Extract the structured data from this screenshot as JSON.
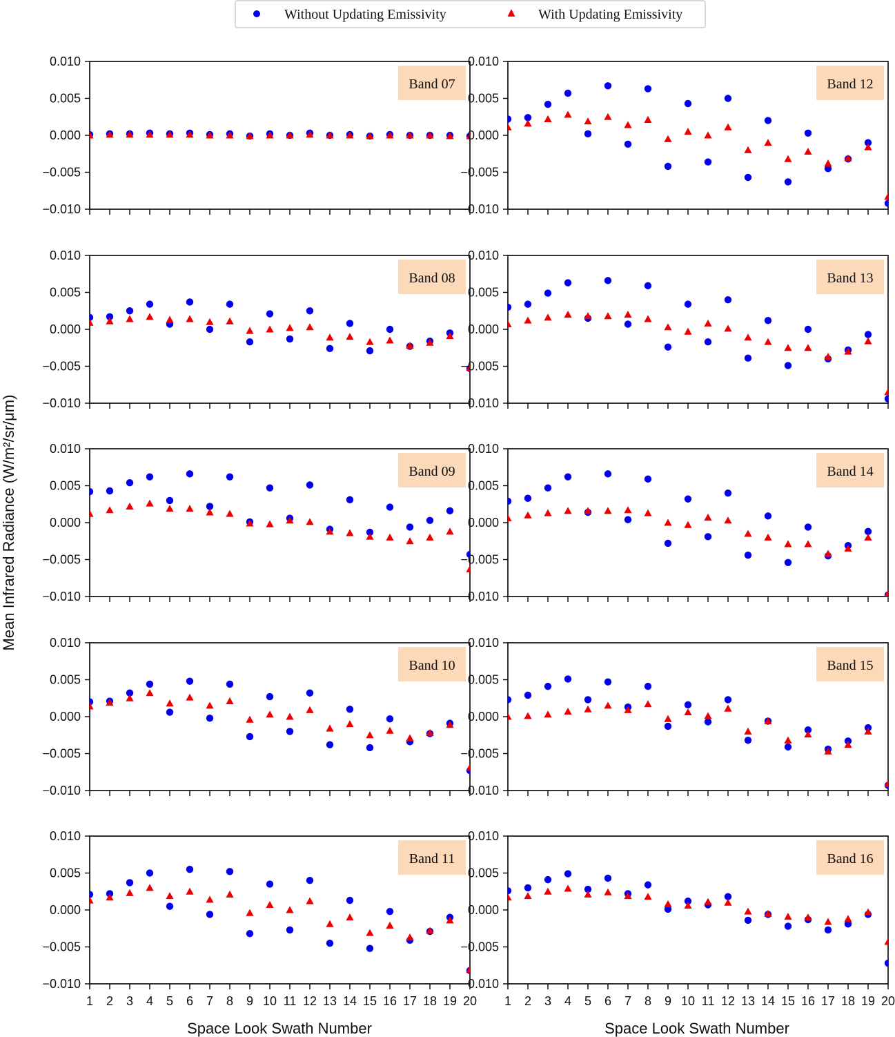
{
  "chart_data": {
    "type": "scatter",
    "ylabel": "Mean Infrared Radiance (W/m²/sr/μm)",
    "xlabel": "Space Look Swath Number",
    "xlim": [
      1,
      20
    ],
    "ylim": [
      -0.01,
      0.01
    ],
    "x_ticks": [
      "1",
      "2",
      "3",
      "4",
      "5",
      "6",
      "7",
      "8",
      "9",
      "10",
      "11",
      "12",
      "13",
      "14",
      "15",
      "16",
      "17",
      "18",
      "19",
      "20"
    ],
    "y_ticks": [
      {
        "value": 0.01,
        "label": "0.010"
      },
      {
        "value": 0.005,
        "label": "0.005"
      },
      {
        "value": 0.0,
        "label": "0.000"
      },
      {
        "value": -0.005,
        "label": "−0.005"
      },
      {
        "value": -0.01,
        "label": "−0.010"
      }
    ],
    "legend": {
      "position": "top-center",
      "entries": [
        {
          "label": "Without Updating Emissivity",
          "marker": "circle",
          "color": "#0000ee"
        },
        {
          "label": "With Updating Emissivity",
          "marker": "triangle",
          "color": "#ee0000"
        }
      ]
    },
    "panel_label_bg": "#fcd9b8",
    "panels": [
      {
        "band": "Band 07",
        "without": [
          0.0001,
          0.0002,
          0.0002,
          0.0003,
          0.0002,
          0.0003,
          0.0001,
          0.0002,
          -0.0001,
          0.0002,
          0.0,
          0.0003,
          0.0,
          0.0001,
          -0.0001,
          0.0001,
          0.0,
          0.0,
          0.0,
          -0.0001
        ],
        "with": [
          0.0,
          0.0001,
          0.0001,
          0.0001,
          0.0001,
          0.0001,
          0.0,
          0.0,
          -0.0001,
          0.0,
          0.0,
          0.0001,
          0.0,
          0.0,
          -0.0001,
          0.0,
          0.0,
          0.0,
          -0.0001,
          -0.0001
        ]
      },
      {
        "band": "Band 12",
        "without": [
          0.0022,
          0.0024,
          0.0042,
          0.0057,
          0.0002,
          0.0067,
          -0.0012,
          0.0063,
          -0.0042,
          0.0043,
          -0.0036,
          0.005,
          -0.0057,
          0.002,
          -0.0063,
          0.0003,
          -0.0045,
          -0.0032,
          -0.001,
          -0.0092
        ],
        "with": [
          0.0011,
          0.0016,
          0.0022,
          0.0028,
          0.0019,
          0.0025,
          0.0014,
          0.0021,
          -0.0005,
          0.0005,
          0.0,
          0.0011,
          -0.002,
          -0.001,
          -0.0032,
          -0.0022,
          -0.0038,
          -0.0031,
          -0.0016,
          -0.0083
        ]
      },
      {
        "band": "Band 08",
        "without": [
          0.0016,
          0.0017,
          0.0025,
          0.0034,
          0.0007,
          0.0037,
          0.0,
          0.0034,
          -0.0017,
          0.0021,
          -0.0013,
          0.0025,
          -0.0026,
          0.0008,
          -0.0029,
          0.0,
          -0.0023,
          -0.0016,
          -0.0005,
          -0.0053
        ],
        "with": [
          0.0009,
          0.0011,
          0.0014,
          0.0017,
          0.0013,
          0.0014,
          0.001,
          0.0011,
          -0.0002,
          0.0,
          0.0002,
          0.0003,
          -0.0011,
          -0.001,
          -0.0017,
          -0.0015,
          -0.0022,
          -0.0018,
          -0.0009,
          -0.0052
        ]
      },
      {
        "band": "Band 13",
        "without": [
          0.003,
          0.0034,
          0.0049,
          0.0063,
          0.0015,
          0.0066,
          0.0007,
          0.0059,
          -0.0024,
          0.0034,
          -0.0017,
          0.004,
          -0.0039,
          0.0012,
          -0.0049,
          0.0,
          -0.004,
          -0.0028,
          -0.0007,
          -0.0094
        ],
        "with": [
          0.0007,
          0.0012,
          0.0016,
          0.002,
          0.0018,
          0.0018,
          0.002,
          0.0014,
          0.0003,
          -0.0003,
          0.0008,
          0.0001,
          -0.0011,
          -0.0017,
          -0.0025,
          -0.0025,
          -0.0037,
          -0.003,
          -0.0016,
          -0.0085
        ]
      },
      {
        "band": "Band 09",
        "without": [
          0.0042,
          0.0043,
          0.0054,
          0.0062,
          0.003,
          0.0066,
          0.0022,
          0.0062,
          0.0001,
          0.0047,
          0.0006,
          0.0051,
          -0.0009,
          0.0031,
          -0.0013,
          0.0021,
          -0.0006,
          0.0003,
          0.0016,
          -0.0043
        ],
        "with": [
          0.0012,
          0.0017,
          0.0022,
          0.0026,
          0.0019,
          0.0019,
          0.0014,
          0.0012,
          -0.0001,
          -0.0002,
          0.0003,
          0.0001,
          -0.0012,
          -0.0014,
          -0.0019,
          -0.002,
          -0.0025,
          -0.002,
          -0.0012,
          -0.0063
        ]
      },
      {
        "band": "Band 14",
        "without": [
          0.0029,
          0.0033,
          0.0047,
          0.0062,
          0.0014,
          0.0066,
          0.0004,
          0.0059,
          -0.0028,
          0.0032,
          -0.0019,
          0.004,
          -0.0044,
          0.0009,
          -0.0054,
          -0.0006,
          -0.0045,
          -0.0031,
          -0.0012,
          -0.0098
        ],
        "with": [
          0.0006,
          0.001,
          0.0013,
          0.0016,
          0.0016,
          0.0016,
          0.0017,
          0.0013,
          0.0,
          -0.0003,
          0.0007,
          0.0003,
          -0.0015,
          -0.002,
          -0.0029,
          -0.0029,
          -0.0042,
          -0.0035,
          -0.002,
          -0.0096
        ]
      },
      {
        "band": "Band 10",
        "without": [
          0.002,
          0.0021,
          0.0032,
          0.0044,
          0.0006,
          0.0048,
          -0.0002,
          0.0044,
          -0.0027,
          0.0027,
          -0.002,
          0.0032,
          -0.0038,
          0.001,
          -0.0042,
          -0.0003,
          -0.0034,
          -0.0023,
          -0.0009,
          -0.0073
        ],
        "with": [
          0.0014,
          0.0019,
          0.0025,
          0.0032,
          0.0018,
          0.0026,
          0.0015,
          0.0021,
          -0.0004,
          0.0003,
          0.0,
          0.0009,
          -0.0016,
          -0.001,
          -0.0025,
          -0.0019,
          -0.0029,
          -0.0022,
          -0.0011,
          -0.0069
        ]
      },
      {
        "band": "Band 15",
        "without": [
          0.0023,
          0.0029,
          0.0041,
          0.0051,
          0.0023,
          0.0047,
          0.0013,
          0.0041,
          -0.0013,
          0.0016,
          -0.0007,
          0.0023,
          -0.0032,
          -0.0006,
          -0.0041,
          -0.0018,
          -0.0044,
          -0.0033,
          -0.0015,
          -0.0093
        ],
        "with": [
          0.0,
          0.0001,
          0.0003,
          0.0007,
          0.001,
          0.0015,
          0.0009,
          0.0017,
          -0.0003,
          0.0006,
          0.0001,
          0.0011,
          -0.002,
          -0.0006,
          -0.0032,
          -0.0024,
          -0.0047,
          -0.0038,
          -0.002,
          -0.0091
        ]
      },
      {
        "band": "Band 11",
        "without": [
          0.0021,
          0.0022,
          0.0037,
          0.005,
          0.0005,
          0.0055,
          -0.0006,
          0.0052,
          -0.0032,
          0.0035,
          -0.0027,
          0.004,
          -0.0045,
          0.0013,
          -0.0052,
          -0.0002,
          -0.0041,
          -0.0029,
          -0.001,
          -0.0082
        ],
        "with": [
          0.0013,
          0.0017,
          0.0023,
          0.003,
          0.0019,
          0.0025,
          0.0014,
          0.0021,
          -0.0004,
          0.0007,
          0.0,
          0.0012,
          -0.0019,
          -0.001,
          -0.0031,
          -0.0021,
          -0.0037,
          -0.0028,
          -0.0014,
          -0.0081
        ]
      },
      {
        "band": "Band 16",
        "without": [
          0.0026,
          0.003,
          0.0041,
          0.0049,
          0.0028,
          0.0043,
          0.0022,
          0.0034,
          0.0001,
          0.0012,
          0.0007,
          0.0018,
          -0.0014,
          -0.0006,
          -0.0022,
          -0.0013,
          -0.0027,
          -0.0019,
          -0.0006,
          -0.0072
        ],
        "with": [
          0.0017,
          0.0019,
          0.0025,
          0.0029,
          0.0021,
          0.0024,
          0.0019,
          0.0018,
          0.0008,
          0.0006,
          0.0011,
          0.001,
          -0.0002,
          -0.0005,
          -0.0009,
          -0.001,
          -0.0016,
          -0.0012,
          -0.0003,
          -0.0043
        ]
      }
    ]
  }
}
